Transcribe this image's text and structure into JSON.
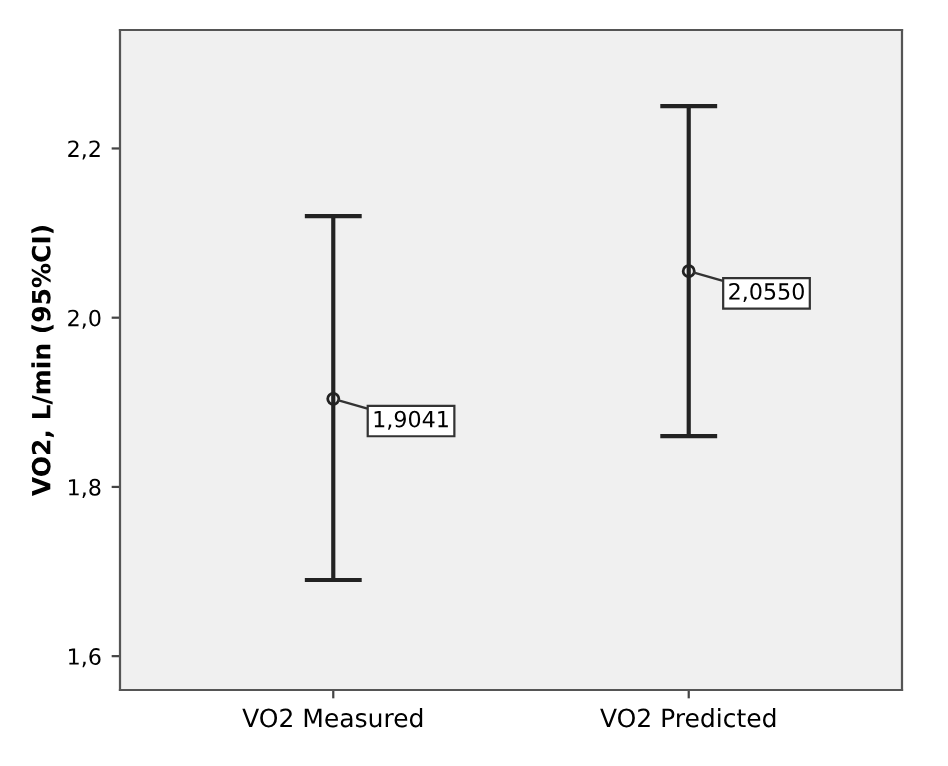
{
  "chart_data": {
    "type": "scatter",
    "categories": [
      "VO2 Measured",
      "VO2 Predicted"
    ],
    "values": [
      1.9041,
      2.055
    ],
    "errors": [
      [
        1.69,
        2.12
      ],
      [
        1.86,
        2.25
      ]
    ],
    "value_labels": [
      "1,9041",
      "2,0550"
    ],
    "color": "#222222",
    "marker": "circle",
    "ylabel": "VO2, L/min (95%CI)",
    "ylim": [
      1.56,
      2.34
    ],
    "yticks": [
      {
        "value": 1.6,
        "label": "1,6"
      },
      {
        "value": 1.8,
        "label": "1,8"
      },
      {
        "value": 2.0,
        "label": "2,0"
      },
      {
        "value": 2.2,
        "label": "2,2"
      }
    ],
    "grid": false,
    "legend": false
  }
}
